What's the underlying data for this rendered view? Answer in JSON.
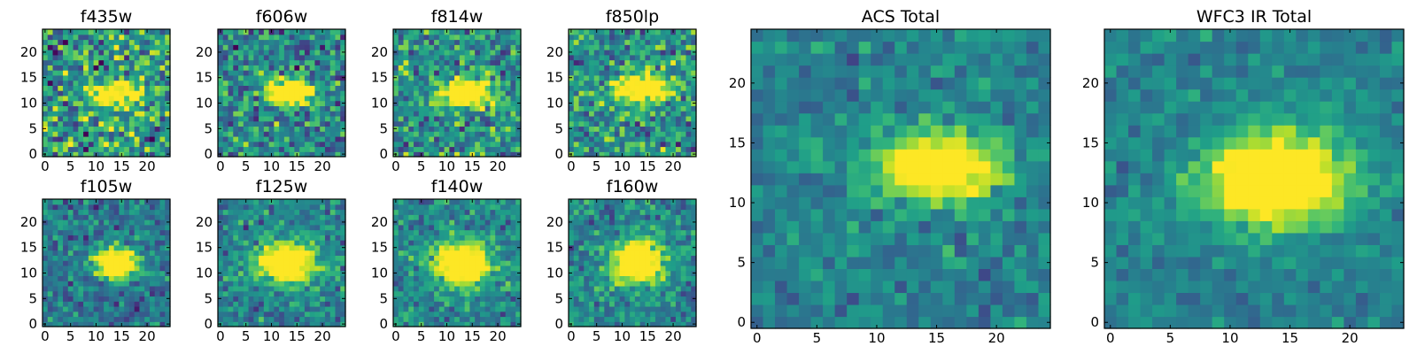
{
  "chart_data": {
    "type": "heatmap",
    "description_note": "",
    "panels": [
      {
        "title": "f435w",
        "xticks": [
          "0",
          "5",
          "10",
          "15",
          "20"
        ],
        "yticks": [
          "0",
          "5",
          "10",
          "15",
          "20"
        ],
        "grid_size": 25,
        "source_center": [
          14,
          12
        ],
        "source_size": [
          3.5,
          1.6
        ],
        "peak": 0.85,
        "noise": 0.45,
        "background": 0.55
      },
      {
        "title": "f606w",
        "xticks": [
          "0",
          "5",
          "10",
          "15",
          "20"
        ],
        "yticks": [
          "0",
          "5",
          "10",
          "15",
          "20"
        ],
        "grid_size": 25,
        "source_center": [
          14,
          12
        ],
        "source_size": [
          3.5,
          1.8
        ],
        "peak": 0.95,
        "noise": 0.35,
        "background": 0.45
      },
      {
        "title": "f814w",
        "xticks": [
          "0",
          "5",
          "10",
          "15",
          "20"
        ],
        "yticks": [
          "0",
          "5",
          "10",
          "15",
          "20"
        ],
        "grid_size": 25,
        "source_center": [
          14,
          12
        ],
        "source_size": [
          3.5,
          1.8
        ],
        "peak": 0.95,
        "noise": 0.35,
        "background": 0.5
      },
      {
        "title": "f850lp",
        "xticks": [
          "0",
          "5",
          "10",
          "15",
          "20"
        ],
        "yticks": [
          "0",
          "5",
          "10",
          "15",
          "20"
        ],
        "grid_size": 25,
        "source_center": [
          14,
          13
        ],
        "source_size": [
          3.5,
          2.0
        ],
        "peak": 0.95,
        "noise": 0.35,
        "background": 0.5
      },
      {
        "title": "f105w",
        "xticks": [
          "0",
          "5",
          "10",
          "15",
          "20"
        ],
        "yticks": [
          "0",
          "5",
          "10",
          "15",
          "20"
        ],
        "grid_size": 25,
        "source_center": [
          14,
          12
        ],
        "source_size": [
          3.0,
          2.2
        ],
        "peak": 1.0,
        "noise": 0.25,
        "background": 0.4
      },
      {
        "title": "f125w",
        "xticks": [
          "0",
          "5",
          "10",
          "15",
          "20"
        ],
        "yticks": [
          "0",
          "5",
          "10",
          "15",
          "20"
        ],
        "grid_size": 25,
        "source_center": [
          13,
          12
        ],
        "source_size": [
          4.0,
          2.8
        ],
        "peak": 0.95,
        "noise": 0.25,
        "background": 0.45
      },
      {
        "title": "f140w",
        "xticks": [
          "0",
          "5",
          "10",
          "15",
          "20"
        ],
        "yticks": [
          "0",
          "5",
          "10",
          "15",
          "20"
        ],
        "grid_size": 25,
        "source_center": [
          13,
          12
        ],
        "source_size": [
          4.0,
          3.0
        ],
        "peak": 1.0,
        "noise": 0.25,
        "background": 0.45
      },
      {
        "title": "f160w",
        "xticks": [
          "0",
          "5",
          "10",
          "15",
          "20"
        ],
        "yticks": [
          "0",
          "5",
          "10",
          "15",
          "20"
        ],
        "grid_size": 25,
        "source_center": [
          13,
          12
        ],
        "source_size": [
          3.5,
          3.0
        ],
        "peak": 1.0,
        "noise": 0.25,
        "background": 0.45
      },
      {
        "title": "ACS Total",
        "xticks": [
          "0",
          "5",
          "10",
          "15",
          "20"
        ],
        "yticks": [
          "0",
          "5",
          "10",
          "15",
          "20"
        ],
        "grid_size": 25,
        "source_center": [
          15,
          13
        ],
        "source_size": [
          3.5,
          1.8
        ],
        "peak": 1.0,
        "noise": 0.18,
        "background": 0.45
      },
      {
        "title": "WFC3 IR Total",
        "xticks": [
          "0",
          "5",
          "10",
          "15",
          "20"
        ],
        "yticks": [
          "0",
          "5",
          "10",
          "15",
          "20"
        ],
        "grid_size": 25,
        "source_center": [
          14,
          12
        ],
        "source_size": [
          4.0,
          2.6
        ],
        "peak": 1.0,
        "noise": 0.15,
        "background": 0.45
      }
    ],
    "colormap": "viridis",
    "xlim": [
      0,
      25
    ],
    "ylim": [
      0,
      25
    ],
    "grid": false
  }
}
